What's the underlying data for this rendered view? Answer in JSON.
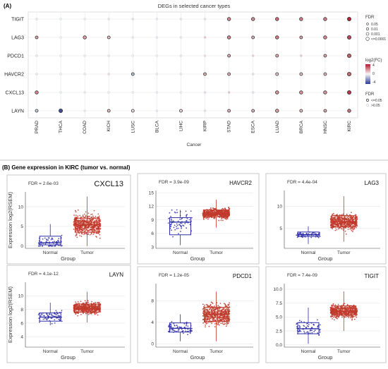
{
  "panel_a": {
    "label": "(A)",
    "chart_data": {
      "type": "scatter",
      "title": "DEGs in selected cancer types",
      "xlabel": "Cancer",
      "ylabel": "",
      "x_categories": [
        "PRAD",
        "THCA",
        "COAD",
        "KICH",
        "LUSC",
        "BLCA",
        "LIHC",
        "KIRP",
        "STAD",
        "ESCA",
        "LUAD",
        "BRCA",
        "HNSC",
        "KIRC"
      ],
      "y_categories": [
        "LAYN",
        "CXCL13",
        "HAVCR2",
        "PDCD1",
        "LAG3",
        "TIGIT"
      ],
      "legend_placement": "right",
      "fdr_size_title": "FDR",
      "fdr_size_entries": [
        "0.05",
        "0.01",
        "0.001",
        "<=0.0001"
      ],
      "color_title": "log2(FC)",
      "color_ticks": [
        "4",
        "0",
        "-4"
      ],
      "fdr_sig_title": "FDR",
      "fdr_sig_entries": [
        "<=0.05",
        ">0.05"
      ],
      "colors": {
        "up": "#b2182b",
        "down": "#2c3b8f",
        "sig_outline": "#333333",
        "nonsig": "#d0d5e6"
      },
      "points": {
        "TIGIT": [
          [
            0.3,
            0
          ],
          [
            -0.2,
            0
          ],
          [
            0.2,
            0
          ],
          [
            0.3,
            0
          ],
          [
            0.5,
            0
          ],
          [
            0.3,
            0
          ],
          [
            0.4,
            0
          ],
          [
            0.5,
            0
          ],
          [
            2.0,
            1
          ],
          [
            2.0,
            1
          ],
          [
            2.5,
            1
          ],
          [
            2.2,
            1
          ],
          [
            2.2,
            1
          ],
          [
            3.8,
            1
          ]
        ],
        "LAG3": [
          [
            1.5,
            1
          ],
          [
            -0.1,
            0
          ],
          [
            1.6,
            1
          ],
          [
            1.0,
            1
          ],
          [
            0.3,
            0
          ],
          [
            0.3,
            0
          ],
          [
            0.3,
            0
          ],
          [
            1.0,
            0
          ],
          [
            2.0,
            1
          ],
          [
            1.3,
            1
          ],
          [
            2.2,
            1
          ],
          [
            1.5,
            1
          ],
          [
            2.0,
            1
          ],
          [
            3.2,
            1
          ]
        ],
        "PDCD1": [
          [
            0.3,
            0
          ],
          [
            -0.2,
            0
          ],
          [
            0.2,
            0
          ],
          [
            0.3,
            0
          ],
          [
            0.2,
            0
          ],
          [
            0.2,
            0
          ],
          [
            0.3,
            0
          ],
          [
            0.5,
            0
          ],
          [
            1.4,
            1
          ],
          [
            0.8,
            0
          ],
          [
            1.3,
            1
          ],
          [
            1.0,
            0
          ],
          [
            1.5,
            1
          ],
          [
            2.8,
            1
          ]
        ],
        "HAVCR2": [
          [
            0.3,
            0
          ],
          [
            0.2,
            0
          ],
          [
            0.3,
            0
          ],
          [
            0.5,
            0
          ],
          [
            -1.2,
            1
          ],
          [
            0.3,
            0
          ],
          [
            0.3,
            0
          ],
          [
            1.3,
            1
          ],
          [
            1.3,
            1
          ],
          [
            0.5,
            0
          ],
          [
            0.8,
            1
          ],
          [
            0.9,
            1
          ],
          [
            1.1,
            1
          ],
          [
            2.6,
            1
          ]
        ],
        "CXCL13": [
          [
            2.0,
            1
          ],
          [
            -0.2,
            0
          ],
          [
            0.3,
            0
          ],
          [
            0.2,
            0
          ],
          [
            0.2,
            0
          ],
          [
            0.2,
            0
          ],
          [
            0.2,
            0
          ],
          [
            0.6,
            0
          ],
          [
            1.0,
            0
          ],
          [
            0.5,
            0
          ],
          [
            1.8,
            1
          ],
          [
            1.8,
            1
          ],
          [
            1.8,
            1
          ],
          [
            3.5,
            1
          ]
        ],
        "LAYN": [
          [
            -0.8,
            1
          ],
          [
            -3.6,
            1
          ],
          [
            0.3,
            0
          ],
          [
            1.0,
            1
          ],
          [
            0.4,
            1
          ],
          [
            0.3,
            0
          ],
          [
            0.5,
            1
          ],
          [
            0.5,
            0
          ],
          [
            1.2,
            1
          ],
          [
            1.2,
            1
          ],
          [
            1.6,
            1
          ],
          [
            1.0,
            1
          ],
          [
            1.4,
            1
          ],
          [
            2.4,
            1
          ]
        ]
      }
    }
  },
  "panel_b": {
    "label": "(B) Gene expression in  KIRC (tumor vs. normal)",
    "chart_data": [
      {
        "type": "box",
        "title": "CXCL13",
        "fdr_text": "FDR = 2.6e-03",
        "xlabel": "Group",
        "ylabel": "Expression log2(RSEM)",
        "categories": [
          "Normal",
          "Tumor"
        ],
        "ylim": [
          -0.6,
          13.8
        ],
        "yticks": [
          0,
          5,
          10
        ],
        "series": [
          {
            "name": "Normal",
            "color": "#2e2ea8",
            "min": 0,
            "q1": 0.3,
            "median": 0.8,
            "q3": 2.5,
            "max": 5.6,
            "n": 72
          },
          {
            "name": "Tumor",
            "color": "#c0392b",
            "min": 0,
            "q1": 3.5,
            "median": 5.4,
            "q3": 7.1,
            "max": 12.6,
            "n": 534
          }
        ]
      },
      {
        "type": "box",
        "title": "HAVCR2",
        "fdr_text": "FDR = 3.9e-09",
        "xlabel": "Group",
        "ylabel": "",
        "categories": [
          "Normal",
          "Tumor"
        ],
        "ylim": [
          2.7,
          15.5
        ],
        "yticks": [
          3,
          6,
          9,
          12,
          15
        ],
        "series": [
          {
            "name": "Normal",
            "color": "#2e2ea8",
            "min": 3.4,
            "q1": 5.7,
            "median": 8.5,
            "q3": 9.5,
            "max": 11.2,
            "n": 72
          },
          {
            "name": "Tumor",
            "color": "#c0392b",
            "min": 7.3,
            "q1": 9.7,
            "median": 10.4,
            "q3": 11.2,
            "max": 13.5,
            "n": 534
          }
        ]
      },
      {
        "type": "box",
        "title": "LAG3",
        "fdr_text": "FDR = 4.4e-04",
        "xlabel": "Group",
        "ylabel": "",
        "categories": [
          "Normal",
          "Tumor"
        ],
        "ylim": [
          0.5,
          13.6
        ],
        "yticks": [
          5,
          10
        ],
        "series": [
          {
            "name": "Normal",
            "color": "#2e2ea8",
            "min": 1.5,
            "q1": 3.2,
            "median": 3.6,
            "q3": 4.2,
            "max": 5.5,
            "n": 72
          },
          {
            "name": "Tumor",
            "color": "#c0392b",
            "min": 2.0,
            "q1": 5.4,
            "median": 6.5,
            "q3": 7.9,
            "max": 12.3,
            "n": 534
          }
        ]
      },
      {
        "type": "box",
        "title": "LAYN",
        "fdr_text": "FDR = 4.1e-12",
        "xlabel": "Group",
        "ylabel": "Expression log2(RSEM)",
        "categories": [
          "Normal",
          "Tumor"
        ],
        "ylim": [
          2.5,
          12.0
        ],
        "yticks": [
          4,
          6,
          8,
          10
        ],
        "series": [
          {
            "name": "Normal",
            "color": "#2e2ea8",
            "min": 5.7,
            "q1": 6.3,
            "median": 6.9,
            "q3": 7.5,
            "max": 9.0,
            "n": 72
          },
          {
            "name": "Tumor",
            "color": "#c0392b",
            "min": 6.1,
            "q1": 7.6,
            "median": 8.2,
            "q3": 8.8,
            "max": 10.6,
            "n": 534
          }
        ]
      },
      {
        "type": "box",
        "title": "PDCD1",
        "fdr_text": "FDR = 1.2e-05",
        "xlabel": "Group",
        "ylabel": "",
        "categories": [
          "Normal",
          "Tumor"
        ],
        "ylim": [
          -0.6,
          11.2
        ],
        "yticks": [
          0,
          4,
          8
        ],
        "series": [
          {
            "name": "Normal",
            "color": "#2e2ea8",
            "min": 0.5,
            "q1": 2.2,
            "median": 2.9,
            "q3": 3.9,
            "max": 5.5,
            "n": 72
          },
          {
            "name": "Tumor",
            "color": "#c0392b",
            "min": 0.5,
            "q1": 4.2,
            "median": 5.5,
            "q3": 6.8,
            "max": 9.7,
            "n": 534
          }
        ]
      },
      {
        "type": "box",
        "title": "TIGIT",
        "fdr_text": "FDR = 7.4e-09",
        "xlabel": "Group",
        "ylabel": "",
        "categories": [
          "Normal",
          "Tumor"
        ],
        "ylim": [
          -0.4,
          11.0
        ],
        "yticks": [
          0.0,
          2.5,
          5.0,
          7.5,
          10.0
        ],
        "series": [
          {
            "name": "Normal",
            "color": "#2e2ea8",
            "min": 0.2,
            "q1": 2.0,
            "median": 2.9,
            "q3": 4.0,
            "max": 6.7,
            "n": 72
          },
          {
            "name": "Tumor",
            "color": "#c0392b",
            "min": 2.5,
            "q1": 5.4,
            "median": 6.0,
            "q3": 7.0,
            "max": 9.6,
            "n": 534
          }
        ]
      }
    ]
  }
}
